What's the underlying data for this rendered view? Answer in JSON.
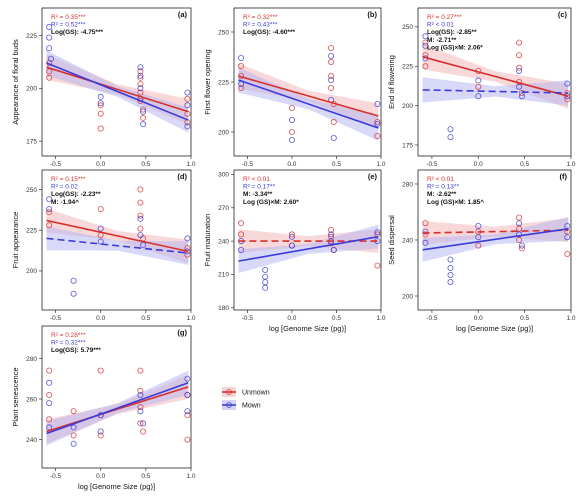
{
  "colors": {
    "unmown": "#d6312f",
    "mown": "#3b3bd8",
    "band_unmown": "#f2b8b8",
    "band_mown": "#b8b8f2"
  },
  "legend": {
    "items": [
      {
        "label": "Unmown",
        "key": "unmown"
      },
      {
        "label": "Mown",
        "key": "mown"
      }
    ]
  },
  "chart_data": [
    {
      "type": "scatter",
      "letter": "(a)",
      "ylabel": "Appearance of floral buds",
      "xlabel": "",
      "xlim": [
        -0.65,
        1.0
      ],
      "ylim": [
        168,
        238
      ],
      "yticks": [
        175,
        200,
        225
      ],
      "xticks": [
        -0.5,
        0.0,
        0.5,
        1.0
      ],
      "stats": [
        {
          "text": "R² = 0.35***",
          "color": "unmown"
        },
        {
          "text": "R² = 0.52***",
          "color": "mown"
        },
        {
          "text": "Log(GS): -4.75***",
          "color": "black"
        }
      ],
      "series": [
        {
          "name": "Unmown",
          "x": [
            -0.57,
            -0.57,
            -0.57,
            0.0,
            0.0,
            0.0,
            0.44,
            0.44,
            0.44,
            0.44,
            0.44,
            0.47,
            0.47,
            0.96,
            0.96,
            0.96
          ],
          "y": [
            212,
            208,
            205,
            192,
            188,
            181,
            208,
            205,
            202,
            198,
            194,
            190,
            186,
            195,
            188,
            184
          ],
          "fit": {
            "from": [
              -0.6,
              210
            ],
            "to": [
              0.97,
              189
            ],
            "dashed": false
          }
        },
        {
          "name": "Mown",
          "x": [
            -0.57,
            -0.57,
            -0.57,
            -0.55,
            0.0,
            0.0,
            0.44,
            0.44,
            0.44,
            0.44,
            0.47,
            0.47,
            0.96,
            0.96,
            0.96
          ],
          "y": [
            229,
            224,
            219,
            214,
            196,
            193,
            210,
            206,
            200,
            195,
            189,
            183,
            198,
            192,
            182
          ],
          "fit": {
            "from": [
              -0.6,
              212
            ],
            "to": [
              0.97,
              185
            ],
            "dashed": false
          }
        }
      ]
    },
    {
      "type": "scatter",
      "letter": "(b)",
      "ylabel": "First flower opening",
      "xlabel": "",
      "xlim": [
        -0.65,
        1.0
      ],
      "ylim": [
        188,
        262
      ],
      "yticks": [
        200,
        225,
        250
      ],
      "xticks": [
        -0.5,
        0.0,
        0.5,
        1.0
      ],
      "stats": [
        {
          "text": "R² = 0.32***",
          "color": "unmown"
        },
        {
          "text": "R² = 0.43***",
          "color": "mown"
        },
        {
          "text": "Log(GS): -4.60***",
          "color": "black"
        }
      ],
      "series": [
        {
          "name": "Unmown",
          "x": [
            -0.57,
            -0.57,
            -0.57,
            0.0,
            0.0,
            0.44,
            0.44,
            0.44,
            0.44,
            0.47,
            0.47,
            0.96,
            0.96
          ],
          "y": [
            233,
            228,
            222,
            212,
            200,
            242,
            235,
            228,
            222,
            214,
            205,
            205,
            198
          ],
          "fit": {
            "from": [
              -0.6,
              228
            ],
            "to": [
              0.97,
              208
            ],
            "dashed": false
          }
        },
        {
          "name": "Mown",
          "x": [
            -0.57,
            -0.57,
            0.0,
            0.0,
            0.44,
            0.44,
            0.44,
            0.47,
            0.96,
            0.96
          ],
          "y": [
            237,
            224,
            206,
            196,
            238,
            226,
            216,
            197,
            214,
            204
          ],
          "fit": {
            "from": [
              -0.6,
              226
            ],
            "to": [
              0.97,
              202
            ],
            "dashed": false
          }
        }
      ]
    },
    {
      "type": "scatter",
      "letter": "(c)",
      "ylabel": "End of flowering",
      "xlabel": "",
      "xlim": [
        -0.65,
        1.0
      ],
      "ylim": [
        168,
        262
      ],
      "yticks": [
        175,
        200,
        225,
        250
      ],
      "xticks": [
        -0.5,
        0.0,
        0.5,
        1.0
      ],
      "stats": [
        {
          "text": "R² = 0.27***",
          "color": "unmown"
        },
        {
          "text": "R² < 0.01",
          "color": "mown"
        },
        {
          "text": "Log(GS): -2.85**",
          "color": "black"
        },
        {
          "text": "M: -2.71**",
          "color": "black"
        },
        {
          "text": "Log (GS)×M: 2.06*",
          "color": "black"
        }
      ],
      "series": [
        {
          "name": "Unmown",
          "x": [
            -0.57,
            -0.57,
            -0.57,
            0.0,
            0.0,
            0.44,
            0.44,
            0.44,
            0.44,
            0.47,
            0.96,
            0.96
          ],
          "y": [
            240,
            232,
            225,
            222,
            212,
            240,
            232,
            224,
            215,
            208,
            208,
            204
          ],
          "fit": {
            "from": [
              -0.6,
              231
            ],
            "to": [
              0.97,
              206
            ],
            "dashed": false
          }
        },
        {
          "name": "Mown",
          "x": [
            -0.57,
            -0.57,
            -0.57,
            -0.3,
            -0.3,
            0.0,
            0.0,
            0.44,
            0.44,
            0.47,
            0.96,
            0.96
          ],
          "y": [
            244,
            238,
            230,
            185,
            180,
            216,
            206,
            222,
            212,
            206,
            214,
            206
          ],
          "fit": {
            "from": [
              -0.6,
              210
            ],
            "to": [
              0.97,
              208
            ],
            "dashed": true
          }
        }
      ]
    },
    {
      "type": "scatter",
      "letter": "(d)",
      "ylabel": "Fruit appearance",
      "xlabel": "",
      "xlim": [
        -0.65,
        1.0
      ],
      "ylim": [
        176,
        262
      ],
      "yticks": [
        200,
        225,
        250
      ],
      "xticks": [
        -0.5,
        0.0,
        0.5,
        1.0
      ],
      "stats": [
        {
          "text": "R² = 0.15***",
          "color": "unmown"
        },
        {
          "text": "R² = 0.02",
          "color": "mown"
        },
        {
          "text": "Log(GS): -2.23**",
          "color": "black"
        },
        {
          "text": "M: -1.94^",
          "color": "black"
        }
      ],
      "series": [
        {
          "name": "Unmown",
          "x": [
            -0.57,
            -0.57,
            0.0,
            0.0,
            0.44,
            0.44,
            0.44,
            0.44,
            0.47,
            0.96,
            0.96
          ],
          "y": [
            236,
            228,
            238,
            222,
            250,
            242,
            234,
            226,
            220,
            214,
            210
          ],
          "fit": {
            "from": [
              -0.6,
              231
            ],
            "to": [
              0.97,
              212
            ],
            "dashed": false
          }
        },
        {
          "name": "Mown",
          "x": [
            -0.57,
            -0.57,
            -0.3,
            -0.3,
            0.0,
            0.0,
            0.44,
            0.44,
            0.47,
            0.96,
            0.96
          ],
          "y": [
            244,
            238,
            194,
            186,
            226,
            218,
            232,
            222,
            216,
            220,
            212
          ],
          "fit": {
            "from": [
              -0.6,
              220
            ],
            "to": [
              0.97,
              211
            ],
            "dashed": true
          }
        }
      ]
    },
    {
      "type": "scatter",
      "letter": "(e)",
      "ylabel": "Fruit maturation",
      "xlabel": "log [Genome Size (pg)]",
      "xlim": [
        -0.65,
        1.0
      ],
      "ylim": [
        178,
        304
      ],
      "yticks": [
        180,
        210,
        240,
        270,
        300
      ],
      "xticks": [
        -0.5,
        0.0,
        0.5,
        1.0
      ],
      "stats": [
        {
          "text": "R² < 0.01",
          "color": "unmown"
        },
        {
          "text": "R² = 0.17**",
          "color": "mown"
        },
        {
          "text": "M: -3.34**",
          "color": "black"
        },
        {
          "text": "Log (GS)×M: 2.60*",
          "color": "black"
        }
      ],
      "series": [
        {
          "name": "Unmown",
          "x": [
            -0.57,
            -0.57,
            0.0,
            0.0,
            0.44,
            0.44,
            0.44,
            0.47,
            0.96,
            0.96
          ],
          "y": [
            256,
            246,
            246,
            236,
            250,
            244,
            238,
            232,
            246,
            218
          ],
          "fit": {
            "from": [
              -0.6,
              240
            ],
            "to": [
              0.97,
              240
            ],
            "dashed": true
          }
        },
        {
          "name": "Mown",
          "x": [
            -0.57,
            -0.57,
            -0.3,
            -0.3,
            -0.3,
            -0.3,
            0.0,
            0.0,
            0.44,
            0.44,
            0.47,
            0.96,
            0.96
          ],
          "y": [
            240,
            232,
            214,
            208,
            203,
            198,
            244,
            236,
            246,
            240,
            232,
            248,
            240
          ],
          "fit": {
            "from": [
              -0.6,
              222
            ],
            "to": [
              0.97,
              244
            ],
            "dashed": false
          }
        }
      ]
    },
    {
      "type": "scatter",
      "letter": "(f)",
      "ylabel": "Seed dispersal",
      "xlabel": "log [Genome Size (pg)]",
      "xlim": [
        -0.65,
        1.0
      ],
      "ylim": [
        190,
        290
      ],
      "yticks": [
        200,
        240,
        280
      ],
      "xticks": [
        -0.5,
        0.0,
        0.5,
        1.0
      ],
      "stats": [
        {
          "text": "R² < 0.01",
          "color": "unmown"
        },
        {
          "text": "R² = 0.13**",
          "color": "mown"
        },
        {
          "text": "M: -2.62**",
          "color": "black"
        },
        {
          "text": "Log (GS)×M: 1.85^",
          "color": "black"
        }
      ],
      "series": [
        {
          "name": "Unmown",
          "x": [
            -0.57,
            -0.57,
            0.0,
            0.0,
            0.44,
            0.44,
            0.44,
            0.47,
            0.96,
            0.96
          ],
          "y": [
            252,
            244,
            246,
            236,
            256,
            248,
            240,
            234,
            246,
            230
          ],
          "fit": {
            "from": [
              -0.6,
              245
            ],
            "to": [
              0.97,
              247
            ],
            "dashed": true
          }
        },
        {
          "name": "Mown",
          "x": [
            -0.57,
            -0.57,
            -0.3,
            -0.3,
            -0.3,
            -0.3,
            0.0,
            0.0,
            0.44,
            0.44,
            0.47,
            0.96,
            0.96
          ],
          "y": [
            246,
            238,
            226,
            220,
            215,
            210,
            250,
            242,
            252,
            244,
            236,
            250,
            242
          ],
          "fit": {
            "from": [
              -0.6,
              233
            ],
            "to": [
              0.97,
              248
            ],
            "dashed": false
          }
        }
      ]
    },
    {
      "type": "scatter",
      "letter": "(g)",
      "ylabel": "Plant senescence",
      "xlabel": "log [Genome Size (pg)]",
      "xlim": [
        -0.65,
        1.0
      ],
      "ylim": [
        226,
        296
      ],
      "yticks": [
        240,
        260,
        280
      ],
      "xticks": [
        -0.5,
        0.0,
        0.5,
        1.0
      ],
      "stats": [
        {
          "text": "R² = 0.28***",
          "color": "unmown"
        },
        {
          "text": "R² = 0.32***",
          "color": "mown"
        },
        {
          "text": "Log(GS): 5.79***",
          "color": "black"
        }
      ],
      "series": [
        {
          "name": "Unmown",
          "x": [
            -0.57,
            -0.57,
            -0.57,
            -0.3,
            -0.3,
            0.0,
            0.0,
            0.0,
            0.44,
            0.44,
            0.44,
            0.44,
            0.47,
            0.96,
            0.96,
            0.96
          ],
          "y": [
            274,
            262,
            250,
            254,
            242,
            274,
            252,
            242,
            274,
            264,
            256,
            248,
            244,
            262,
            252,
            240
          ],
          "fit": {
            "from": [
              -0.6,
              244
            ],
            "to": [
              0.97,
              266
            ],
            "dashed": false
          }
        },
        {
          "name": "Mown",
          "x": [
            -0.57,
            -0.57,
            -0.57,
            -0.3,
            -0.3,
            0.0,
            0.0,
            0.44,
            0.44,
            0.47,
            0.96,
            0.96,
            0.96
          ],
          "y": [
            268,
            258,
            246,
            246,
            238,
            252,
            244,
            262,
            254,
            248,
            270,
            262,
            254
          ],
          "fit": {
            "from": [
              -0.6,
              243
            ],
            "to": [
              0.97,
              268
            ],
            "dashed": false
          }
        }
      ]
    }
  ]
}
